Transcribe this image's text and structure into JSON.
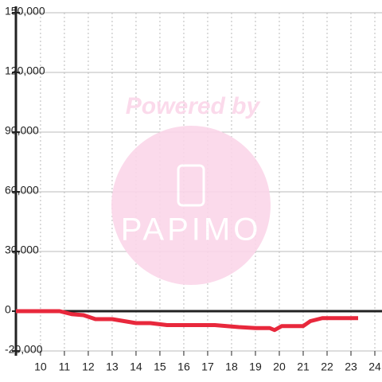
{
  "chart_data": {
    "type": "line",
    "watermark": [
      "Powered by",
      "PAPIMO"
    ],
    "x": [
      8.97,
      10.8,
      11.3,
      11.8,
      12.3,
      13,
      14,
      14.6,
      15.3,
      17.3,
      17.8,
      18.3,
      19,
      19.6,
      19.8,
      20.1,
      21,
      21.3,
      21.8,
      23.3
    ],
    "series": [
      {
        "color": "#e8283c",
        "values": [
          0,
          0,
          -1500,
          -2000,
          -4000,
          -4000,
          -6000,
          -6000,
          -7000,
          -7000,
          -7500,
          -8000,
          -8500,
          -8500,
          -9500,
          -7500,
          -7500,
          -5000,
          -3500,
          -3500
        ]
      }
    ],
    "xlim": [
      8.97,
      24.3
    ],
    "xticks": [
      10,
      11,
      12,
      13,
      14,
      15,
      16,
      17,
      18,
      19,
      20,
      21,
      22,
      23,
      24
    ],
    "ylim": [
      -20000,
      150000
    ],
    "yticks": [
      {
        "value": -20000,
        "label": "-20,000"
      },
      0,
      {
        "value": 30000,
        "label": "30,000"
      },
      {
        "value": 60000,
        "label": "60,000"
      },
      {
        "value": 90000,
        "label": "90,000"
      },
      {
        "value": 120000,
        "label": "120,000"
      },
      {
        "value": 150000,
        "label": "150,000"
      }
    ],
    "grid": true
  }
}
